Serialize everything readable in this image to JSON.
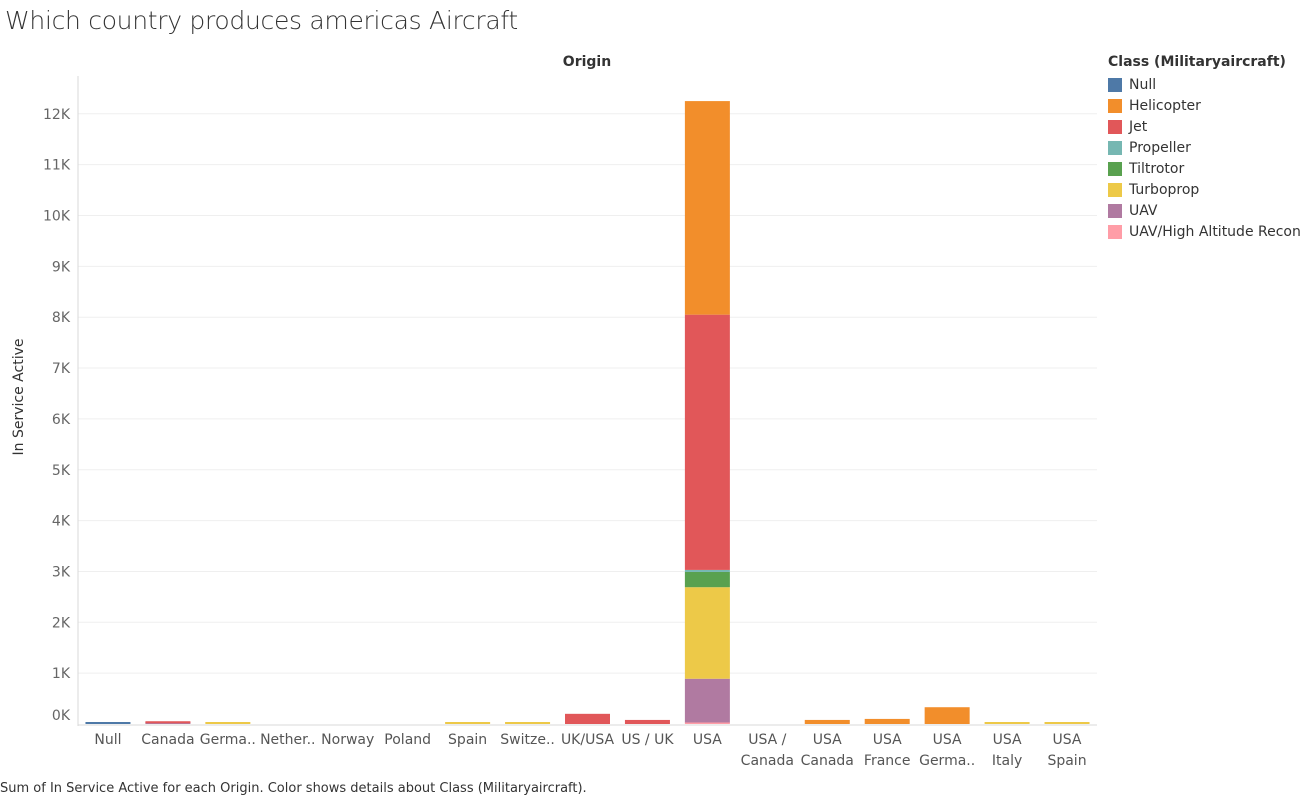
{
  "title": "Which country produces americas Aircraft",
  "footer": "Sum of In Service Active for each Origin.  Color shows details about Class (Militaryaircraft).",
  "legend": {
    "title": "Class (Militaryaircraft)",
    "items": [
      {
        "label": "Null",
        "color": "#4e79a7"
      },
      {
        "label": "Helicopter",
        "color": "#f28e2b"
      },
      {
        "label": "Jet",
        "color": "#e15759"
      },
      {
        "label": "Propeller",
        "color": "#76b7b2"
      },
      {
        "label": "Tiltrotor",
        "color": "#59a14f"
      },
      {
        "label": "Turboprop",
        "color": "#edc948"
      },
      {
        "label": "UAV",
        "color": "#b07aa1"
      },
      {
        "label": "UAV/High Altitude Recon",
        "color": "#ff9da7"
      }
    ]
  },
  "chart_data": {
    "type": "bar",
    "stacked": true,
    "title": "",
    "xlabel": "Origin",
    "ylabel": "In Service Active",
    "ylim": [
      0,
      12500
    ],
    "yticks": [
      0,
      1000,
      2000,
      3000,
      4000,
      5000,
      6000,
      7000,
      8000,
      9000,
      10000,
      11000,
      12000
    ],
    "ytick_labels": [
      "0K",
      "1K",
      "2K",
      "3K",
      "4K",
      "5K",
      "6K",
      "7K",
      "8K",
      "9K",
      "10K",
      "11K",
      "12K"
    ],
    "categories": [
      {
        "label": [
          "Null"
        ]
      },
      {
        "label": [
          "Canada"
        ]
      },
      {
        "label": [
          "Germa.."
        ]
      },
      {
        "label": [
          "Nether.."
        ]
      },
      {
        "label": [
          "Norway"
        ]
      },
      {
        "label": [
          "Poland"
        ]
      },
      {
        "label": [
          "Spain"
        ]
      },
      {
        "label": [
          "Switze.."
        ]
      },
      {
        "label": [
          "UK/USA"
        ]
      },
      {
        "label": [
          "US / UK"
        ]
      },
      {
        "label": [
          "USA"
        ]
      },
      {
        "label": [
          "USA /",
          "Canada"
        ]
      },
      {
        "label": [
          "USA",
          "Canada"
        ]
      },
      {
        "label": [
          "USA",
          "France"
        ]
      },
      {
        "label": [
          "USA",
          "Germa.."
        ]
      },
      {
        "label": [
          "USA",
          "Italy"
        ]
      },
      {
        "label": [
          "USA",
          "Spain"
        ]
      }
    ],
    "series": [
      {
        "name": "Null",
        "values": [
          20,
          0,
          0,
          0,
          0,
          0,
          0,
          0,
          0,
          0,
          0,
          0,
          0,
          0,
          0,
          0,
          0
        ]
      },
      {
        "name": "Helicopter",
        "values": [
          0,
          0,
          0,
          0,
          0,
          0,
          0,
          0,
          0,
          0,
          4200,
          0,
          80,
          100,
          330,
          0,
          0
        ]
      },
      {
        "name": "Jet",
        "values": [
          0,
          30,
          0,
          0,
          0,
          0,
          0,
          0,
          200,
          80,
          5020,
          0,
          0,
          0,
          0,
          0,
          0
        ]
      },
      {
        "name": "Propeller",
        "values": [
          0,
          0,
          0,
          0,
          0,
          0,
          0,
          0,
          0,
          0,
          40,
          0,
          0,
          0,
          0,
          0,
          0
        ]
      },
      {
        "name": "Tiltrotor",
        "values": [
          0,
          0,
          0,
          0,
          0,
          0,
          0,
          0,
          0,
          0,
          300,
          0,
          0,
          0,
          0,
          0,
          0
        ]
      },
      {
        "name": "Turboprop",
        "values": [
          0,
          0,
          15,
          0,
          0,
          0,
          15,
          30,
          0,
          0,
          1800,
          0,
          0,
          0,
          0,
          20,
          15
        ]
      },
      {
        "name": "UAV",
        "values": [
          0,
          15,
          0,
          0,
          0,
          0,
          0,
          0,
          0,
          0,
          860,
          0,
          0,
          0,
          0,
          0,
          0
        ]
      },
      {
        "name": "UAV/High Altitude Recon",
        "values": [
          0,
          0,
          0,
          0,
          0,
          0,
          0,
          0,
          0,
          0,
          30,
          0,
          0,
          0,
          0,
          0,
          0
        ]
      }
    ]
  }
}
